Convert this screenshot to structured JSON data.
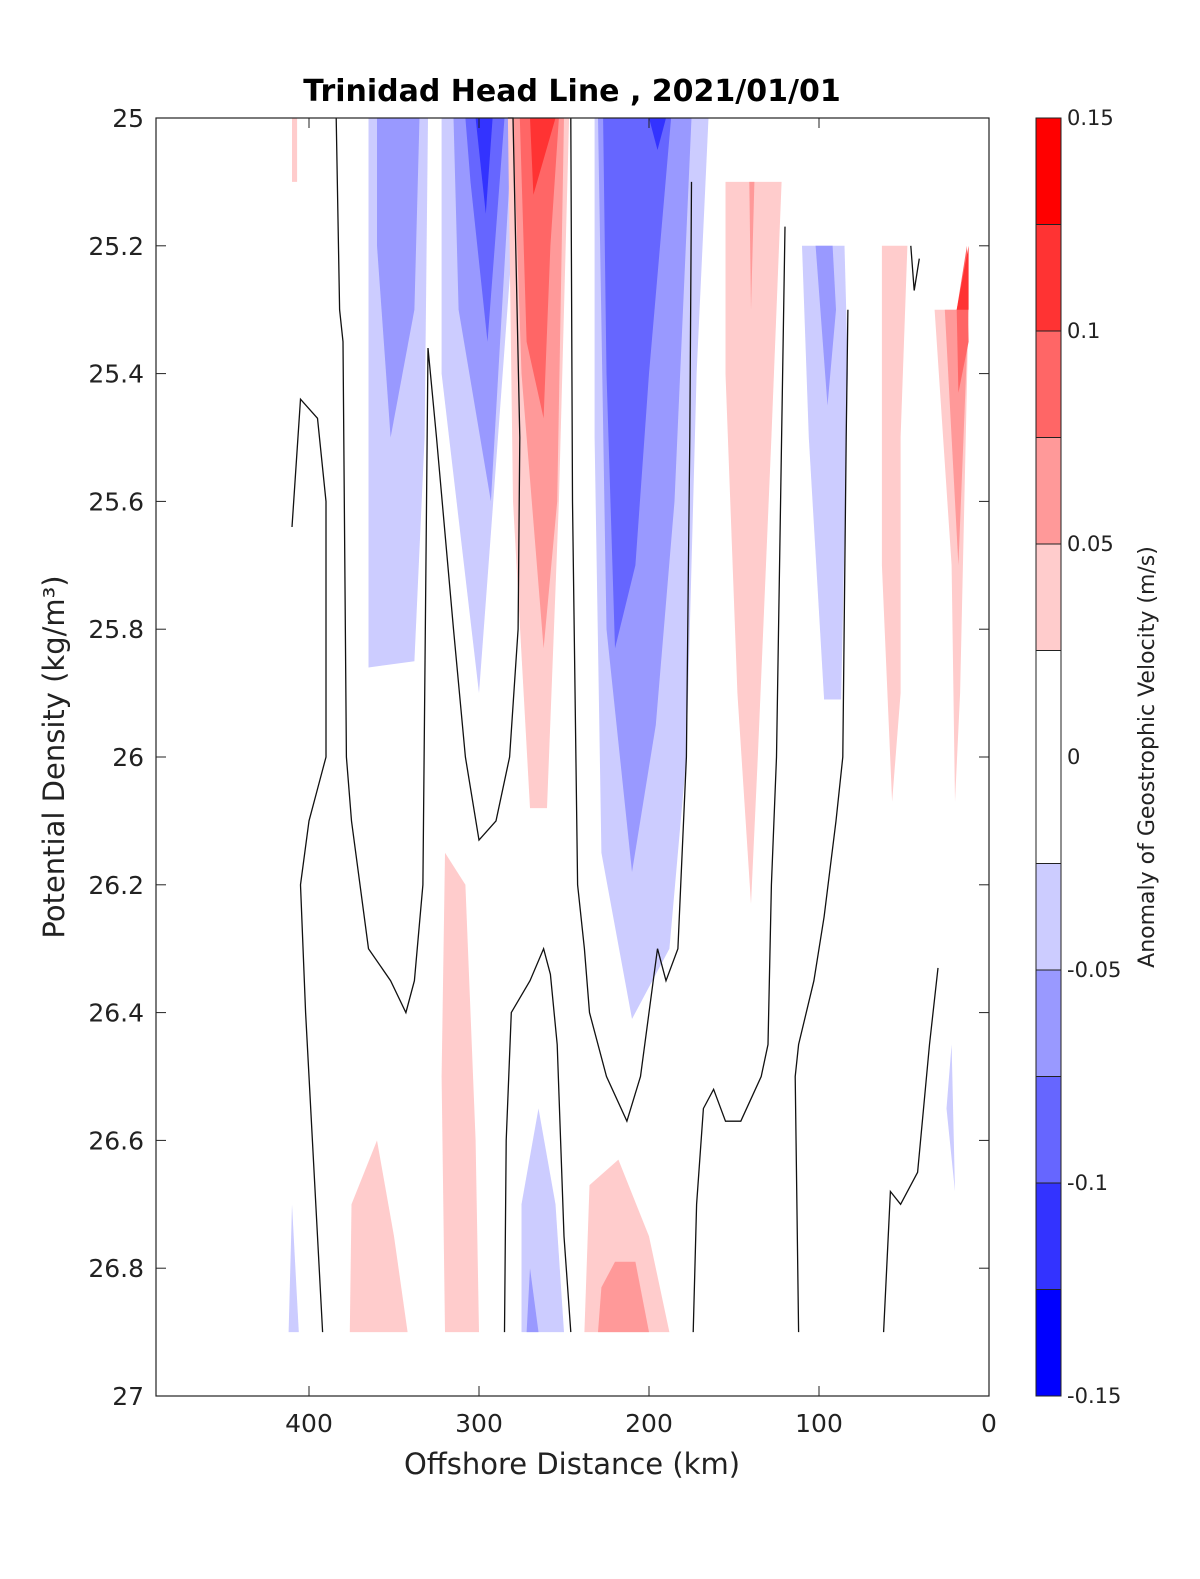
{
  "chart_data": {
    "type": "contour",
    "title": "Trinidad Head Line , 2021/01/01",
    "xlabel": "Offshore Distance (km)",
    "ylabel": "Potential Density (kg/m³)",
    "xlim": [
      490,
      0
    ],
    "ylim": [
      25,
      27
    ],
    "x_ticks": [
      "400",
      "300",
      "200",
      "100",
      "0"
    ],
    "y_ticks": [
      "25",
      "25.2",
      "25.4",
      "25.6",
      "25.8",
      "26",
      "26.2",
      "26.4",
      "26.6",
      "26.8",
      "27"
    ],
    "colorbar": {
      "label": "Anomaly of Geostrophic Velocity (m/s)",
      "range": [
        -0.15,
        0.15
      ],
      "levels": [
        -0.15,
        -0.125,
        -0.1,
        -0.075,
        -0.05,
        -0.025,
        0.025,
        0.05,
        0.075,
        0.1,
        0.125,
        0.15
      ],
      "tick_labels": [
        "0.15",
        "0.1",
        "0.05",
        "0",
        "-0.05",
        "-0.1",
        "-0.15"
      ],
      "colors": [
        "#0000ff",
        "#3333ff",
        "#6666ff",
        "#9999ff",
        "#ccccff",
        "#ffffff",
        "#ffcccc",
        "#ff9999",
        "#ff6666",
        "#ff3333",
        "#ff0000"
      ]
    },
    "filled_regions": [
      {
        "value": 0.0375,
        "points": [
          [
            410,
            25
          ],
          [
            407,
            25
          ],
          [
            407,
            25.1
          ],
          [
            410,
            25.1
          ]
        ]
      },
      {
        "value": -0.0375,
        "points": [
          [
            365,
            25
          ],
          [
            330,
            25
          ],
          [
            332,
            25.5
          ],
          [
            338,
            25.85
          ],
          [
            365,
            25.86
          ]
        ]
      },
      {
        "value": -0.0625,
        "points": [
          [
            360,
            25
          ],
          [
            335,
            25
          ],
          [
            338,
            25.3
          ],
          [
            352,
            25.5
          ],
          [
            360,
            25.2
          ]
        ]
      },
      {
        "value": -0.0375,
        "points": [
          [
            322,
            25
          ],
          [
            275,
            25
          ],
          [
            293,
            25.65
          ],
          [
            300,
            25.9
          ],
          [
            322,
            25.4
          ]
        ]
      },
      {
        "value": -0.0625,
        "points": [
          [
            315,
            25
          ],
          [
            280,
            25
          ],
          [
            293,
            25.6
          ],
          [
            312,
            25.3
          ]
        ]
      },
      {
        "value": -0.0875,
        "points": [
          [
            308,
            25
          ],
          [
            285,
            25
          ],
          [
            295,
            25.35
          ],
          [
            305,
            25.1
          ]
        ]
      },
      {
        "value": -0.1125,
        "points": [
          [
            302,
            25
          ],
          [
            292,
            25
          ],
          [
            296,
            25.15
          ]
        ]
      },
      {
        "value": 0.0375,
        "points": [
          [
            283,
            25
          ],
          [
            247,
            25
          ],
          [
            253,
            25.6
          ],
          [
            260,
            26.08
          ],
          [
            270,
            26.08
          ],
          [
            280,
            25.6
          ]
        ]
      },
      {
        "value": 0.0625,
        "points": [
          [
            280,
            25
          ],
          [
            250,
            25
          ],
          [
            254,
            25.6
          ],
          [
            262,
            25.83
          ],
          [
            275,
            25.4
          ]
        ]
      },
      {
        "value": 0.0875,
        "points": [
          [
            276,
            25
          ],
          [
            253,
            25
          ],
          [
            258,
            25.2
          ],
          [
            262,
            25.47
          ],
          [
            272,
            25.35
          ]
        ]
      },
      {
        "value": 0.1125,
        "points": [
          [
            270,
            25
          ],
          [
            255,
            25
          ],
          [
            268,
            25.12
          ]
        ]
      },
      {
        "value": -0.0375,
        "points": [
          [
            232,
            25
          ],
          [
            165,
            25
          ],
          [
            172,
            25.4
          ],
          [
            178,
            26
          ],
          [
            188,
            26.3
          ],
          [
            210,
            26.41
          ],
          [
            228,
            26.15
          ],
          [
            232,
            25.5
          ]
        ]
      },
      {
        "value": -0.0625,
        "points": [
          [
            230,
            25
          ],
          [
            175,
            25
          ],
          [
            185,
            25.6
          ],
          [
            196,
            25.95
          ],
          [
            210,
            26.18
          ],
          [
            225,
            25.8
          ]
        ]
      },
      {
        "value": -0.0875,
        "points": [
          [
            227,
            25
          ],
          [
            187,
            25
          ],
          [
            200,
            25.4
          ],
          [
            208,
            25.7
          ],
          [
            220,
            25.83
          ],
          [
            225,
            25.4
          ]
        ]
      },
      {
        "value": -0.1125,
        "points": [
          [
            200,
            25
          ],
          [
            190,
            25
          ],
          [
            195,
            25.05
          ]
        ]
      },
      {
        "value": 0.0375,
        "points": [
          [
            155,
            25.1
          ],
          [
            122,
            25.1
          ],
          [
            128,
            25.5
          ],
          [
            136,
            26.0
          ],
          [
            140,
            26.23
          ],
          [
            148,
            25.9
          ],
          [
            155,
            25.4
          ]
        ]
      },
      {
        "value": 0.0625,
        "points": [
          [
            141,
            25.1
          ],
          [
            138,
            25.1
          ],
          [
            140,
            25.3
          ]
        ]
      },
      {
        "value": -0.0375,
        "points": [
          [
            110,
            25.2
          ],
          [
            85,
            25.2
          ],
          [
            83,
            25.4
          ],
          [
            87,
            25.91
          ],
          [
            97,
            25.91
          ],
          [
            106,
            25.5
          ]
        ]
      },
      {
        "value": -0.0625,
        "points": [
          [
            102,
            25.2
          ],
          [
            92,
            25.2
          ],
          [
            90,
            25.3
          ],
          [
            95,
            25.45
          ]
        ]
      },
      {
        "value": 0.0375,
        "points": [
          [
            63,
            25.2
          ],
          [
            48,
            25.2
          ],
          [
            52,
            25.5
          ],
          [
            52,
            25.9
          ],
          [
            57,
            26.07
          ],
          [
            63,
            25.7
          ]
        ]
      },
      {
        "value": 0.0375,
        "points": [
          [
            32,
            25.3
          ],
          [
            12,
            25.3
          ],
          [
            17,
            25.9
          ],
          [
            20,
            26.07
          ],
          [
            22,
            25.7
          ]
        ]
      },
      {
        "value": 0.0625,
        "points": [
          [
            26,
            25.3
          ],
          [
            12,
            25.3
          ],
          [
            18,
            25.7
          ],
          [
            22,
            25.5
          ]
        ]
      },
      {
        "value": 0.0875,
        "points": [
          [
            13,
            25.2
          ],
          [
            12,
            25.35
          ],
          [
            18,
            25.43
          ],
          [
            19,
            25.3
          ]
        ]
      },
      {
        "value": 0.1125,
        "points": [
          [
            12,
            25.2
          ],
          [
            19,
            25.3
          ],
          [
            12,
            25.3
          ]
        ]
      },
      {
        "value": -0.0375,
        "points": [
          [
            22,
            26.45
          ],
          [
            20,
            26.68
          ],
          [
            25,
            26.55
          ]
        ]
      },
      {
        "value": 0.0375,
        "points": [
          [
            320,
            26.15
          ],
          [
            308,
            26.2
          ],
          [
            302,
            26.6
          ],
          [
            300,
            26.9
          ],
          [
            320,
            26.9
          ],
          [
            322,
            26.5
          ]
        ]
      },
      {
        "value": 0.0375,
        "points": [
          [
            360,
            26.6
          ],
          [
            375,
            26.7
          ],
          [
            376,
            26.9
          ],
          [
            342,
            26.9
          ],
          [
            350,
            26.75
          ]
        ]
      },
      {
        "value": -0.0375,
        "points": [
          [
            265,
            26.55
          ],
          [
            275,
            26.7
          ],
          [
            275,
            26.9
          ],
          [
            250,
            26.9
          ],
          [
            255,
            26.7
          ]
        ]
      },
      {
        "value": -0.0625,
        "points": [
          [
            270,
            26.8
          ],
          [
            272,
            26.9
          ],
          [
            265,
            26.9
          ]
        ]
      },
      {
        "value": 0.0375,
        "points": [
          [
            218,
            26.63
          ],
          [
            235,
            26.67
          ],
          [
            238,
            26.9
          ],
          [
            188,
            26.9
          ],
          [
            200,
            26.75
          ]
        ]
      },
      {
        "value": 0.0625,
        "points": [
          [
            220,
            26.79
          ],
          [
            228,
            26.83
          ],
          [
            230,
            26.9
          ],
          [
            200,
            26.9
          ],
          [
            208,
            26.79
          ]
        ]
      },
      {
        "value": -0.0375,
        "points": [
          [
            410,
            26.7
          ],
          [
            412,
            26.9
          ],
          [
            406,
            26.9
          ]
        ]
      }
    ],
    "contour_lines": [
      {
        "level": 0,
        "points": [
          [
            410,
            25.64
          ],
          [
            405,
            25.44
          ],
          [
            395,
            25.47
          ],
          [
            390,
            25.6
          ],
          [
            390,
            26.0
          ],
          [
            395,
            26.05
          ],
          [
            400,
            26.1
          ],
          [
            405,
            26.2
          ],
          [
            402,
            26.4
          ],
          [
            398,
            26.6
          ],
          [
            392,
            26.9
          ]
        ]
      },
      {
        "level": 0,
        "points": [
          [
            384,
            25
          ],
          [
            382,
            25.3
          ],
          [
            380,
            25.35
          ],
          [
            378,
            26.0
          ],
          [
            375,
            26.1
          ],
          [
            370,
            26.2
          ],
          [
            365,
            26.3
          ],
          [
            352,
            26.35
          ],
          [
            343,
            26.4
          ],
          [
            338,
            26.35
          ],
          [
            333,
            26.2
          ],
          [
            330,
            25.36
          ],
          [
            325,
            25.5
          ],
          [
            315,
            25.8
          ],
          [
            308,
            26.0
          ],
          [
            300,
            26.13
          ],
          [
            290,
            26.1
          ],
          [
            282,
            26.0
          ],
          [
            277,
            25.8
          ],
          [
            276,
            25.5
          ],
          [
            280,
            25
          ],
          [
            283,
            25
          ]
        ]
      },
      {
        "level": 0,
        "points": [
          [
            285,
            26.9
          ],
          [
            284,
            26.6
          ],
          [
            281,
            26.4
          ],
          [
            270,
            26.35
          ],
          [
            262,
            26.3
          ],
          [
            258,
            26.34
          ],
          [
            254,
            26.45
          ],
          [
            250,
            26.75
          ],
          [
            246,
            26.9
          ]
        ]
      },
      {
        "level": 0,
        "points": [
          [
            246,
            25
          ],
          [
            245,
            25.6
          ],
          [
            242,
            26.2
          ],
          [
            238,
            26.3
          ],
          [
            235,
            26.4
          ],
          [
            225,
            26.5
          ],
          [
            213,
            26.57
          ],
          [
            205,
            26.5
          ],
          [
            195,
            26.3
          ],
          [
            190,
            26.35
          ],
          [
            183,
            26.3
          ],
          [
            178,
            26.0
          ],
          [
            176,
            25.5
          ],
          [
            175,
            25.1
          ]
        ]
      },
      {
        "level": 0,
        "points": [
          [
            174,
            26.9
          ],
          [
            172,
            26.7
          ],
          [
            168,
            26.55
          ],
          [
            162,
            26.52
          ],
          [
            155,
            26.57
          ],
          [
            146,
            26.57
          ],
          [
            134,
            26.5
          ],
          [
            130,
            26.45
          ],
          [
            128,
            26.2
          ],
          [
            125,
            26.0
          ],
          [
            122,
            25.5
          ],
          [
            120,
            25.17
          ]
        ]
      },
      {
        "level": 0,
        "points": [
          [
            112,
            26.9
          ],
          [
            114,
            26.5
          ],
          [
            112,
            26.45
          ],
          [
            103,
            26.35
          ],
          [
            97,
            26.25
          ],
          [
            90,
            26.1
          ],
          [
            86,
            26.0
          ],
          [
            84,
            25.5
          ],
          [
            83,
            25.3
          ]
        ]
      },
      {
        "level": 0,
        "points": [
          [
            62,
            26.9
          ],
          [
            58,
            26.68
          ],
          [
            52,
            26.7
          ],
          [
            42,
            26.65
          ],
          [
            35,
            26.45
          ],
          [
            30,
            26.33
          ]
        ]
      },
      {
        "level": 0,
        "points": [
          [
            46,
            25.2
          ],
          [
            44,
            25.27
          ],
          [
            41,
            25.22
          ]
        ]
      }
    ]
  }
}
